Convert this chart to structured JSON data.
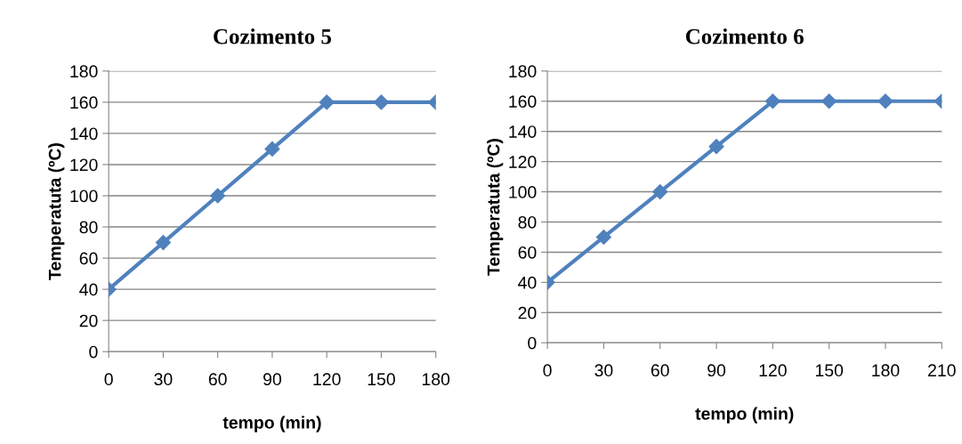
{
  "chart_data": [
    {
      "type": "line",
      "title": "Cozimento 5",
      "xlabel": "tempo (min)",
      "ylabel": "Temperatuta (ºC)",
      "categories": [
        "0",
        "30",
        "60",
        "90",
        "120",
        "150",
        "180"
      ],
      "series": [
        {
          "color": "#4f81bd",
          "values": [
            40,
            70,
            100,
            130,
            160,
            160,
            160
          ]
        }
      ],
      "ylim": [
        0,
        180
      ],
      "yticks": [
        0,
        20,
        40,
        60,
        80,
        100,
        120,
        140,
        160,
        180
      ],
      "grid": "y",
      "marker": "diamond",
      "line_style": "solid"
    },
    {
      "type": "line",
      "title": "Cozimento 6",
      "xlabel": "tempo (min)",
      "ylabel": "Temperatuta (ºC)",
      "categories": [
        "0",
        "30",
        "60",
        "90",
        "120",
        "150",
        "180",
        "210"
      ],
      "series": [
        {
          "color": "#4f81bd",
          "values": [
            40,
            70,
            100,
            130,
            160,
            160,
            160,
            160
          ]
        }
      ],
      "ylim": [
        0,
        180
      ],
      "yticks": [
        0,
        20,
        40,
        60,
        80,
        100,
        120,
        140,
        160,
        180
      ],
      "grid": "y",
      "marker": "diamond",
      "line_style": "solid"
    }
  ]
}
